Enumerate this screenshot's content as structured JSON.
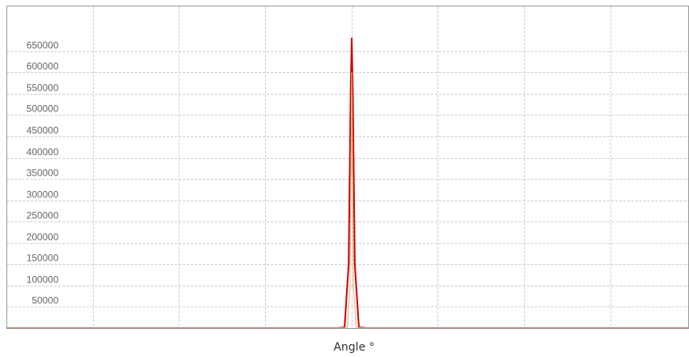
{
  "chart_data": {
    "type": "line",
    "title": "",
    "xlabel": "Angle °",
    "ylabel": "",
    "ylim": [
      0,
      755000
    ],
    "xlim": [
      0,
      100
    ],
    "x_gridlines": [
      12.65,
      25.3,
      37.95,
      50.6,
      63.25,
      75.9,
      88.55
    ],
    "y_ticks": [
      50000,
      100000,
      150000,
      200000,
      250000,
      300000,
      350000,
      400000,
      450000,
      500000,
      550000,
      600000,
      650000
    ],
    "grid": true,
    "legend": "none",
    "series": [
      {
        "color": "#cc0000",
        "x": [
          0,
          48.5,
          49.6,
          50.2,
          50.5,
          50.65,
          50.8,
          51.1,
          51.7,
          52.8,
          100
        ],
        "values": [
          0,
          0,
          2000,
          150000,
          560000,
          680000,
          560000,
          150000,
          2000,
          0,
          0
        ]
      },
      {
        "color": "#e8b88a",
        "x": [
          0,
          48.5,
          50.0,
          50.4,
          50.55,
          50.65,
          50.75,
          50.9,
          51.3,
          52.8,
          100
        ],
        "values": [
          0,
          0,
          1000,
          100000,
          400000,
          600000,
          400000,
          100000,
          1000,
          0,
          0
        ]
      }
    ]
  }
}
